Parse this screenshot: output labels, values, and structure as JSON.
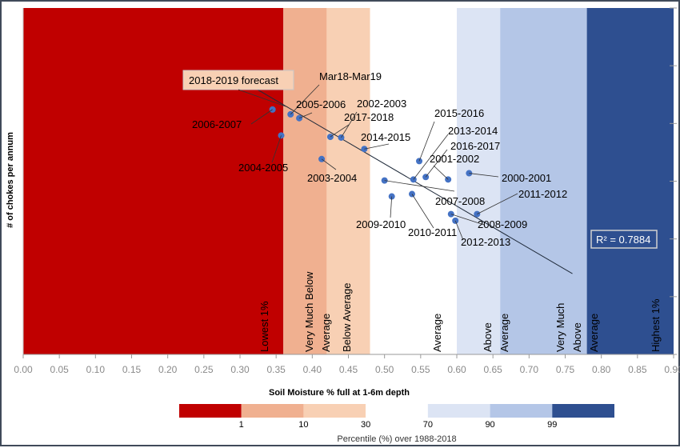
{
  "chart_data": {
    "type": "scatter",
    "xlabel": "Soil Moisture % full at 1-6m depth",
    "ylabel": "# of chokes per annum",
    "xlim": [
      0.0,
      0.9
    ],
    "xticks": [
      "0.00",
      "0.05",
      "0.10",
      "0.15",
      "0.20",
      "0.25",
      "0.30",
      "0.35",
      "0.40",
      "0.45",
      "0.50",
      "0.55",
      "0.60",
      "0.65",
      "0.70",
      "0.75",
      "0.80",
      "0.85",
      "0.90"
    ],
    "ylim": [
      0,
      100
    ],
    "grid": false,
    "band_colors": [
      "#c00000",
      "#f0b090",
      "#f8d0b4",
      "#ffffff",
      "#dce4f4",
      "#b4c6e7",
      "#2e4f90"
    ],
    "bands": [
      {
        "from": 0.0,
        "to": 0.36,
        "label": "Lowest 1%",
        "color": "#c00000"
      },
      {
        "from": 0.36,
        "to": 0.42,
        "label": "Very Much Below Average",
        "color": "#f0b090"
      },
      {
        "from": 0.42,
        "to": 0.48,
        "label": "Below Average",
        "color": "#f8d0b4"
      },
      {
        "from": 0.48,
        "to": 0.6,
        "label": "Average",
        "color": "#ffffff"
      },
      {
        "from": 0.6,
        "to": 0.66,
        "label": "Above Average",
        "color": "#dce4f4"
      },
      {
        "from": 0.66,
        "to": 0.78,
        "label": "Very Much Above Average",
        "color": "#b4c6e7"
      },
      {
        "from": 0.78,
        "to": 0.9,
        "label": "Highest 1%",
        "color": "#2e4f90"
      }
    ],
    "point_color": "#4472c4",
    "series": [
      {
        "points": [
          {
            "label": "2006-2007",
            "x": 0.345,
            "y": 70.7
          },
          {
            "label": "Mar18-Mar19",
            "x": 0.37,
            "y": 69.3
          },
          {
            "label": "2005-2006",
            "x": 0.382,
            "y": 68.2
          },
          {
            "label": "2004-2005",
            "x": 0.357,
            "y": 63.2
          },
          {
            "label": "2017-2018",
            "x": 0.425,
            "y": 62.8
          },
          {
            "label": "2002-2003",
            "x": 0.44,
            "y": 62.6
          },
          {
            "label": "2014-2015",
            "x": 0.472,
            "y": 59.3
          },
          {
            "label": "2003-2004",
            "x": 0.413,
            "y": 56.4
          },
          {
            "label": "2015-2016",
            "x": 0.548,
            "y": 55.8
          },
          {
            "label": "2000-2001",
            "x": 0.617,
            "y": 52.3
          },
          {
            "label": "2016-2017",
            "x": 0.557,
            "y": 51.2
          },
          {
            "label": "2013-2014",
            "x": 0.54,
            "y": 50.5
          },
          {
            "label": "2001-2002",
            "x": 0.588,
            "y": 50.5
          },
          {
            "label": "2007-2008",
            "x": 0.5,
            "y": 50.2
          },
          {
            "label": "2010-2011",
            "x": 0.538,
            "y": 46.3
          },
          {
            "label": "2009-2010",
            "x": 0.51,
            "y": 45.6
          },
          {
            "label": "2011-2012",
            "x": 0.628,
            "y": 40.5
          },
          {
            "label": "2008-2009",
            "x": 0.592,
            "y": 40.5
          },
          {
            "label": "2012-2013",
            "x": 0.598,
            "y": 38.6
          }
        ]
      }
    ],
    "trendline": {
      "x": [
        0.318,
        0.76
      ],
      "y": [
        77.2,
        23.3
      ]
    },
    "annotations": {
      "forecast": "2018-2019 forecast",
      "r2": "R² = 0.7884"
    },
    "legend": {
      "ticks": [
        "1",
        "10",
        "30",
        "70",
        "90",
        "99"
      ],
      "title": "Percentile (%) over 1988-2018",
      "colors": [
        "#c00000",
        "#f0b090",
        "#f8d0b4",
        "#ffffff",
        "#dce4f4",
        "#b4c6e7",
        "#2e4f90"
      ]
    }
  }
}
